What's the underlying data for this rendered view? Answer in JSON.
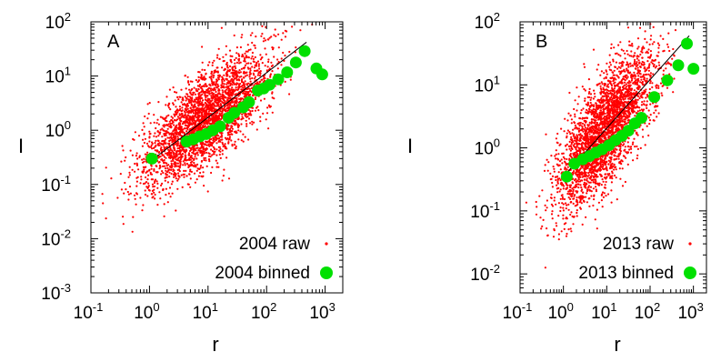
{
  "chart_data": [
    {
      "type": "scatter",
      "panel_label": "A",
      "xlabel": "r",
      "ylabel": "I",
      "x_scale": "log",
      "y_scale": "log",
      "xlim": [
        0.1,
        2000
      ],
      "ylim": [
        0.001,
        100
      ],
      "x_ticks": [
        0.1,
        1,
        10,
        100,
        1000
      ],
      "y_ticks": [
        0.001,
        0.01,
        0.1,
        1,
        10,
        100
      ],
      "x_tick_labels": [
        {
          "base": "10",
          "exp": "-1"
        },
        {
          "base": "10",
          "exp": "0"
        },
        {
          "base": "10",
          "exp": "1"
        },
        {
          "base": "10",
          "exp": "2"
        },
        {
          "base": "10",
          "exp": "3"
        }
      ],
      "y_tick_labels": [
        {
          "base": "10",
          "exp": "-3"
        },
        {
          "base": "10",
          "exp": "-2"
        },
        {
          "base": "10",
          "exp": "-1"
        },
        {
          "base": "10",
          "exp": "0"
        },
        {
          "base": "10",
          "exp": "1"
        },
        {
          "base": "10",
          "exp": "2"
        }
      ],
      "legend_position": "bottom-right",
      "series": [
        {
          "name": "2004 raw",
          "style": "small red points",
          "color": "#ff0000",
          "n_points": 3000
        },
        {
          "name": "2004 binned",
          "style": "large green circles",
          "color": "#00e000",
          "x": [
            1.1,
            4.3,
            5.6,
            7.2,
            9.3,
            12.1,
            16.0,
            22.4,
            28.2,
            39.8,
            50.1,
            70.8,
            89.1,
            112,
            158,
            224,
            316,
            447,
            708,
            891
          ],
          "y": [
            0.3,
            0.62,
            0.68,
            0.77,
            0.85,
            1.0,
            1.18,
            1.7,
            2.1,
            2.65,
            3.3,
            5.4,
            5.9,
            6.9,
            8.7,
            11.7,
            17.8,
            28.8,
            13.8,
            10.7
          ]
        }
      ],
      "fit_line": {
        "x": [
          1.1,
          480
        ],
        "y": [
          0.28,
          42
        ]
      }
    },
    {
      "type": "scatter",
      "panel_label": "B",
      "xlabel": "r",
      "ylabel": "I",
      "x_scale": "log",
      "y_scale": "log",
      "xlim": [
        0.1,
        2000
      ],
      "ylim": [
        0.005,
        100
      ],
      "x_ticks": [
        0.1,
        1,
        10,
        100,
        1000
      ],
      "y_ticks": [
        0.01,
        0.1,
        1,
        10,
        100
      ],
      "x_tick_labels": [
        {
          "base": "10",
          "exp": "-1"
        },
        {
          "base": "10",
          "exp": "0"
        },
        {
          "base": "10",
          "exp": "1"
        },
        {
          "base": "10",
          "exp": "2"
        },
        {
          "base": "10",
          "exp": "3"
        }
      ],
      "y_tick_labels": [
        {
          "base": "10",
          "exp": "-2"
        },
        {
          "base": "10",
          "exp": "-1"
        },
        {
          "base": "10",
          "exp": "0"
        },
        {
          "base": "10",
          "exp": "1"
        },
        {
          "base": "10",
          "exp": "2"
        }
      ],
      "legend_position": "bottom-right",
      "series": [
        {
          "name": "2013 raw",
          "style": "small red points",
          "color": "#ff0000",
          "n_points": 3000
        },
        {
          "name": "2013 binned",
          "style": "large green circles",
          "color": "#00e000",
          "x": [
            1.2,
            1.8,
            2.8,
            4.0,
            5.6,
            7.9,
            11.2,
            15.8,
            22.4,
            31.6,
            44.7,
            63.1,
            125,
            251,
            447,
            708,
            1000
          ],
          "y": [
            0.35,
            0.56,
            0.66,
            0.74,
            0.84,
            0.95,
            1.1,
            1.32,
            1.55,
            1.87,
            2.45,
            3.0,
            6.4,
            11.8,
            20.4,
            45.0,
            18.0
          ]
        }
      ],
      "fit_line": {
        "x": [
          1.2,
          800
        ],
        "y": [
          0.4,
          60
        ]
      }
    }
  ]
}
